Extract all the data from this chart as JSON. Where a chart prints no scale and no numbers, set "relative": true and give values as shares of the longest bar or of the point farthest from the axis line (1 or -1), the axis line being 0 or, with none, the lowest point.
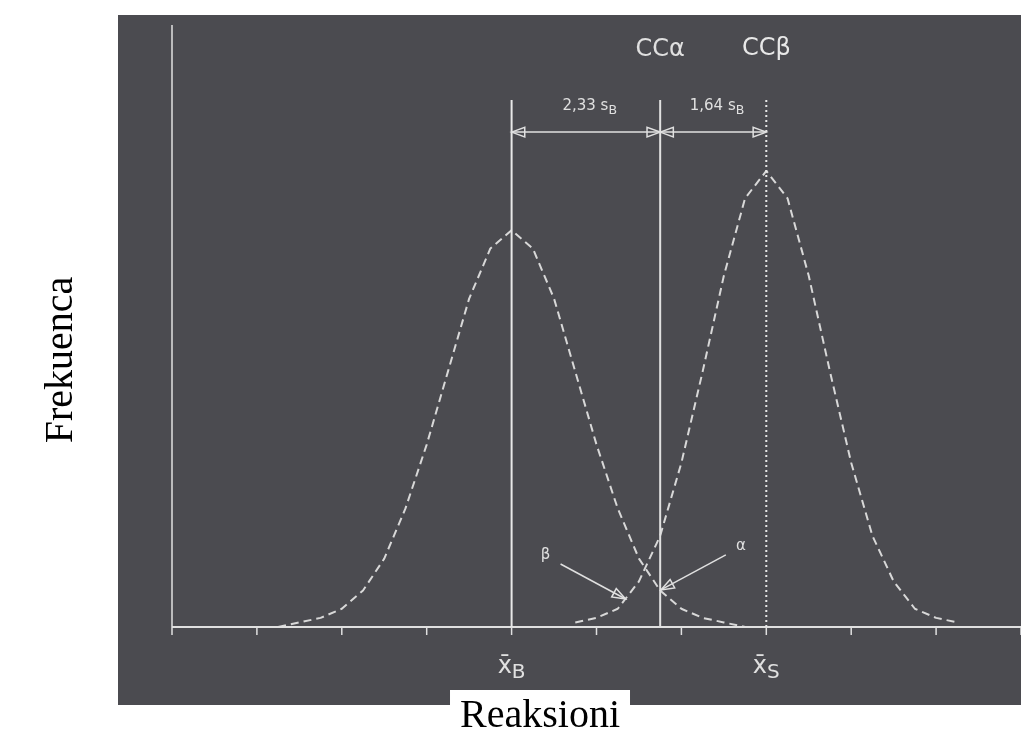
{
  "chart_data": {
    "type": "line",
    "relative": true,
    "xlabel": "Reaksioni",
    "ylabel": "Frekuenca",
    "categories": [
      null,
      null,
      null,
      null,
      null,
      null,
      null,
      null,
      null,
      null,
      null,
      null,
      null,
      null,
      null,
      null,
      "x̄$_{B}$",
      null,
      null,
      null,
      null,
      null,
      null,
      null,
      null,
      null,
      null,
      null,
      "x̄$_{S}$",
      null,
      null,
      null,
      null,
      null,
      null,
      null,
      null,
      null,
      null,
      null,
      null
    ],
    "legend": false,
    "marker": "none",
    "line_style": "dashed",
    "series": [
      {
        "color": "#d8d8d8",
        "values": [
          null,
          null,
          null,
          null,
          null,
          0,
          0.01,
          0.02,
          0.04,
          0.08,
          0.15,
          0.26,
          0.4,
          0.56,
          0.72,
          0.83,
          0.87,
          0.83,
          0.72,
          0.56,
          0.4,
          0.26,
          0.15,
          0.08,
          0.04,
          0.02,
          0.01,
          0,
          null,
          null,
          null,
          null,
          null,
          null,
          null,
          null,
          null,
          null,
          null,
          null,
          null
        ]
      },
      {
        "color": "#d8d8d8",
        "values": [
          null,
          null,
          null,
          null,
          null,
          null,
          null,
          null,
          null,
          null,
          null,
          null,
          null,
          null,
          null,
          null,
          null,
          null,
          null,
          0.01,
          0.02,
          0.04,
          0.1,
          0.2,
          0.36,
          0.56,
          0.77,
          0.94,
          1,
          0.94,
          0.77,
          0.56,
          0.36,
          0.2,
          0.1,
          0.04,
          0.02,
          0.01,
          null,
          null,
          null
        ]
      }
    ],
    "ref_lines": [
      {
        "axis": "x",
        "value": "x̄$_{B}$",
        "color": "#e8e8e8"
      },
      {
        "axis": "x",
        "value": "x̄$_{S}$",
        "label": "CCβ",
        "color": "#e8e8e8",
        "line_style": "dotted"
      }
    ],
    "annotations": [
      "CCα",
      "2,33 s$_{B}$",
      "1,64 s$_{B}$",
      "β",
      "α"
    ]
  }
}
